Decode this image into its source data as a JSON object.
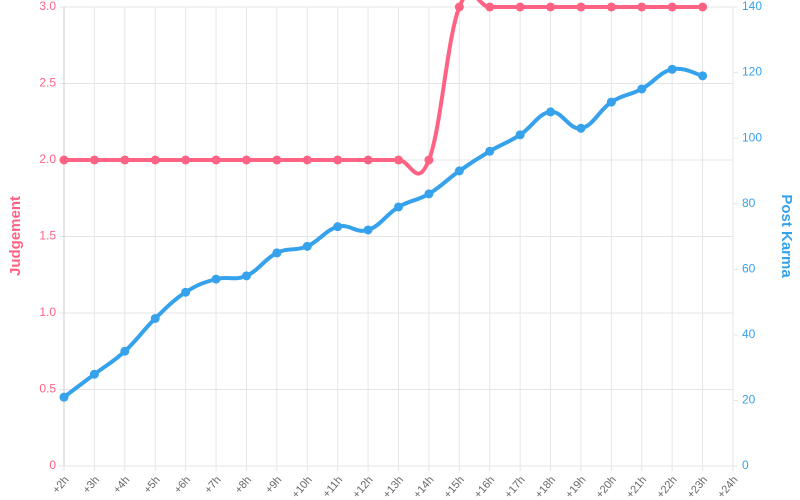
{
  "chart_data": {
    "type": "line",
    "categories": [
      "+2h",
      "+3h",
      "+4h",
      "+5h",
      "+6h",
      "+7h",
      "+8h",
      "+9h",
      "+10h",
      "+11h",
      "+12h",
      "+13h",
      "+14h",
      "+15h",
      "+16h",
      "+17h",
      "+18h",
      "+19h",
      "+20h",
      "+21h",
      "+22h",
      "+23h",
      "+24h"
    ],
    "series": [
      {
        "name": "Judgement",
        "color": "#ff6384",
        "axis": "y",
        "values": [
          2,
          2,
          2,
          2,
          2,
          2,
          2,
          2,
          2,
          2,
          2,
          2,
          2,
          3,
          3,
          3,
          3,
          3,
          3,
          3,
          3,
          3,
          null
        ]
      },
      {
        "name": "Post Karma",
        "color": "#36a2eb",
        "axis": "y2",
        "values": [
          21,
          28,
          35,
          45,
          53,
          57,
          58,
          65,
          67,
          73,
          72,
          79,
          83,
          90,
          96,
          101,
          108,
          103,
          111,
          115,
          121,
          119,
          null
        ]
      }
    ],
    "ylabel": "Judgement",
    "y2label": "Post Karma",
    "ylim": [
      0,
      3
    ],
    "yticks": [
      0,
      0.5,
      {
        "value": 1,
        "label": "1.0"
      },
      1.5,
      {
        "value": 2,
        "label": "2.0"
      },
      2.5,
      {
        "value": 3,
        "label": "3.0"
      }
    ],
    "y2lim": [
      0,
      140
    ],
    "y2ticks": [
      0,
      20,
      40,
      60,
      80,
      100,
      120,
      140
    ],
    "grid": true
  }
}
